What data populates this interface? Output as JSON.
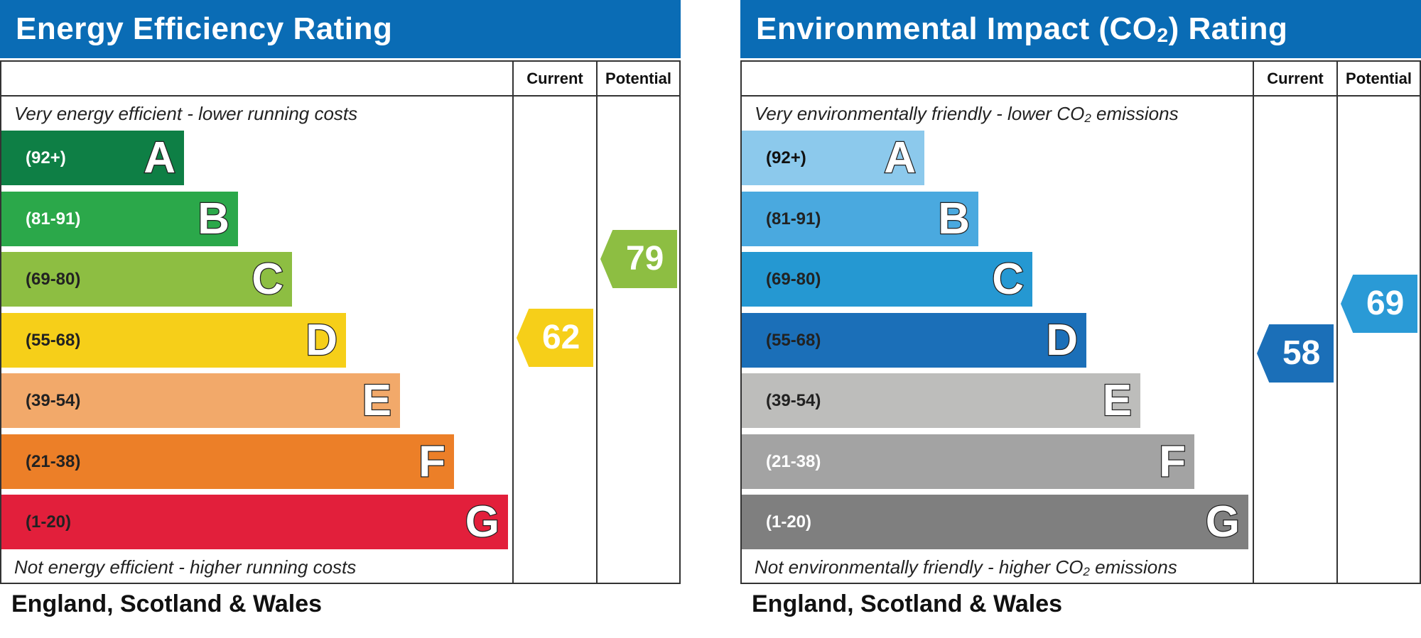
{
  "chart_data": [
    {
      "type": "bar",
      "title": "Energy Efficiency Rating",
      "columns": [
        "Current",
        "Potential"
      ],
      "top_caption": "Very energy efficient - lower running costs",
      "bottom_caption": "Not energy efficient - higher running costs",
      "categories": [
        "A",
        "B",
        "C",
        "D",
        "E",
        "F",
        "G"
      ],
      "ranges": [
        "(92+)",
        "(81-91)",
        "(69-80)",
        "(55-68)",
        "(39-54)",
        "(21-38)",
        "(1-20)"
      ],
      "colors": [
        "#0e7f45",
        "#2ba84a",
        "#8dbe42",
        "#f6cf19",
        "#f2a96a",
        "#ec7f28",
        "#e21f3b"
      ],
      "range_text_colors": [
        "#ffffff",
        "#ffffff",
        "#222222",
        "#222222",
        "#222222",
        "#222222",
        "#222222"
      ],
      "current": {
        "value": 62,
        "band": "D",
        "color": "#f6cf19"
      },
      "potential": {
        "value": 79,
        "band": "C",
        "color": "#8dbe42"
      },
      "footer": "England, Scotland & Wales"
    },
    {
      "type": "bar",
      "title": "Environmental Impact (CO",
      "title_sub": "2",
      "title_suffix": ") Rating",
      "columns": [
        "Current",
        "Potential"
      ],
      "top_caption": "Very environmentally friendly - lower CO",
      "top_caption_sub": "2",
      "top_caption_suffix": " emissions",
      "bottom_caption": "Not environmentally friendly - higher CO",
      "bottom_caption_sub": "2",
      "bottom_caption_suffix": " emissions",
      "categories": [
        "A",
        "B",
        "C",
        "D",
        "E",
        "F",
        "G"
      ],
      "ranges": [
        "(92+)",
        "(81-91)",
        "(69-80)",
        "(55-68)",
        "(39-54)",
        "(21-38)",
        "(1-20)"
      ],
      "colors": [
        "#8cc9ec",
        "#4aa9df",
        "#2598d2",
        "#1b6fb8",
        "#bdbdbb",
        "#a3a3a3",
        "#7f7f7f"
      ],
      "range_text_colors": [
        "#111111",
        "#222222",
        "#222222",
        "#222222",
        "#222222",
        "#ffffff",
        "#ffffff"
      ],
      "current": {
        "value": 58,
        "band": "D",
        "color": "#1b6fb8"
      },
      "potential": {
        "value": 69,
        "band": "C",
        "color": "#2a9ad6"
      },
      "footer": "England, Scotland & Wales"
    }
  ]
}
